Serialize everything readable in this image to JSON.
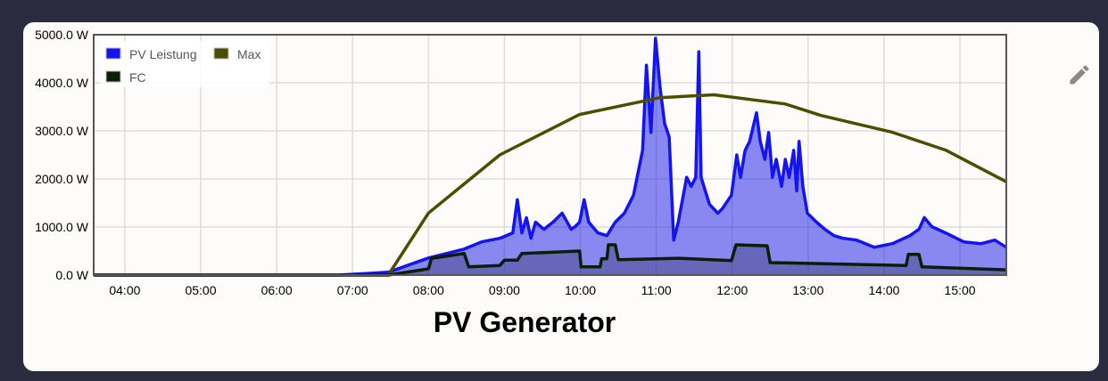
{
  "card": {
    "edit_icon": "pencil-icon"
  },
  "chart_data": {
    "type": "area",
    "title": "PV Generator",
    "xlabel": "",
    "ylabel": "",
    "xlim": [
      3.59,
      15.61
    ],
    "ylim": [
      0,
      5000
    ],
    "grid": true,
    "legend_placement": "top-left",
    "x_ticks": [
      {
        "v": 4,
        "label": "04:00"
      },
      {
        "v": 5,
        "label": "05:00"
      },
      {
        "v": 6,
        "label": "06:00"
      },
      {
        "v": 7,
        "label": "07:00"
      },
      {
        "v": 8,
        "label": "08:00"
      },
      {
        "v": 9,
        "label": "09:00"
      },
      {
        "v": 10,
        "label": "10:00"
      },
      {
        "v": 11,
        "label": "11:00"
      },
      {
        "v": 12,
        "label": "12:00"
      },
      {
        "v": 13,
        "label": "13:00"
      },
      {
        "v": 14,
        "label": "14:00"
      },
      {
        "v": 15,
        "label": "15:00"
      }
    ],
    "y_ticks": [
      {
        "v": 0,
        "label": "0.0 W"
      },
      {
        "v": 1000,
        "label": "1000.0 W"
      },
      {
        "v": 2000,
        "label": "2000.0 W"
      },
      {
        "v": 3000,
        "label": "3000.0 W"
      },
      {
        "v": 4000,
        "label": "4000.0 W"
      },
      {
        "v": 5000,
        "label": "5000.0 W"
      }
    ],
    "series": [
      {
        "name": "PV Leistung",
        "color": "#1414f0",
        "fill": "rgba(20,20,230,0.5)",
        "points": [
          [
            3.59,
            0
          ],
          [
            6.82,
            0
          ],
          [
            7.29,
            40
          ],
          [
            7.47,
            60
          ],
          [
            8.0,
            355
          ],
          [
            8.47,
            541
          ],
          [
            8.7,
            690
          ],
          [
            8.94,
            765
          ],
          [
            9.11,
            877
          ],
          [
            9.17,
            1567
          ],
          [
            9.23,
            877
          ],
          [
            9.29,
            1194
          ],
          [
            9.35,
            765
          ],
          [
            9.41,
            1101
          ],
          [
            9.52,
            952
          ],
          [
            9.64,
            1101
          ],
          [
            9.76,
            1287
          ],
          [
            9.88,
            952
          ],
          [
            9.93,
            1008
          ],
          [
            9.99,
            1101
          ],
          [
            10.05,
            1567
          ],
          [
            10.11,
            1101
          ],
          [
            10.23,
            877
          ],
          [
            10.35,
            821
          ],
          [
            10.46,
            1101
          ],
          [
            10.58,
            1287
          ],
          [
            10.7,
            1661
          ],
          [
            10.76,
            2127
          ],
          [
            10.82,
            2594
          ],
          [
            10.87,
            4366
          ],
          [
            10.93,
            2967
          ],
          [
            10.99,
            4926
          ],
          [
            11.05,
            3900
          ],
          [
            11.11,
            3153
          ],
          [
            11.17,
            2874
          ],
          [
            11.23,
            728
          ],
          [
            11.29,
            1101
          ],
          [
            11.4,
            2034
          ],
          [
            11.46,
            1847
          ],
          [
            11.52,
            2034
          ],
          [
            11.56,
            4646
          ],
          [
            11.59,
            2034
          ],
          [
            11.7,
            1474
          ],
          [
            11.81,
            1287
          ],
          [
            11.87,
            1381
          ],
          [
            11.99,
            1661
          ],
          [
            12.06,
            2500
          ],
          [
            12.11,
            2034
          ],
          [
            12.17,
            2594
          ],
          [
            12.23,
            2780
          ],
          [
            12.32,
            3377
          ],
          [
            12.37,
            2780
          ],
          [
            12.43,
            2407
          ],
          [
            12.48,
            2967
          ],
          [
            12.53,
            2034
          ],
          [
            12.58,
            2407
          ],
          [
            12.65,
            1847
          ],
          [
            12.7,
            2407
          ],
          [
            12.75,
            2034
          ],
          [
            12.81,
            2594
          ],
          [
            12.85,
            1754
          ],
          [
            12.88,
            2780
          ],
          [
            12.93,
            1847
          ],
          [
            12.99,
            1287
          ],
          [
            13.11,
            1101
          ],
          [
            13.22,
            952
          ],
          [
            13.34,
            821
          ],
          [
            13.46,
            765
          ],
          [
            13.64,
            728
          ],
          [
            13.87,
            578
          ],
          [
            14.11,
            653
          ],
          [
            14.34,
            821
          ],
          [
            14.46,
            952
          ],
          [
            14.53,
            1194
          ],
          [
            14.63,
            1008
          ],
          [
            14.81,
            877
          ],
          [
            15.05,
            690
          ],
          [
            15.28,
            653
          ],
          [
            15.46,
            728
          ],
          [
            15.61,
            578
          ]
        ]
      },
      {
        "name": "Max",
        "color": "#4d4d00",
        "points": [
          [
            3.59,
            0
          ],
          [
            7.47,
            0
          ],
          [
            8.0,
            1290
          ],
          [
            8.94,
            2500
          ],
          [
            9.99,
            3340
          ],
          [
            11.05,
            3690
          ],
          [
            11.76,
            3750
          ],
          [
            12.7,
            3560
          ],
          [
            13.17,
            3320
          ],
          [
            14.11,
            2970
          ],
          [
            14.81,
            2600
          ],
          [
            15.61,
            1940
          ]
        ]
      },
      {
        "name": "FC",
        "color": "#0b1f08",
        "fill": "rgba(40,40,90,0.35)",
        "points": [
          [
            3.59,
            0
          ],
          [
            7.47,
            0
          ],
          [
            8.0,
            130
          ],
          [
            8.04,
            350
          ],
          [
            8.23,
            390
          ],
          [
            8.47,
            450
          ],
          [
            8.53,
            170
          ],
          [
            8.94,
            200
          ],
          [
            9.0,
            310
          ],
          [
            9.17,
            310
          ],
          [
            9.23,
            450
          ],
          [
            9.99,
            500
          ],
          [
            10.01,
            170
          ],
          [
            10.26,
            170
          ],
          [
            10.28,
            340
          ],
          [
            10.35,
            340
          ],
          [
            10.37,
            630
          ],
          [
            10.46,
            630
          ],
          [
            10.5,
            320
          ],
          [
            11.29,
            350
          ],
          [
            11.99,
            300
          ],
          [
            12.05,
            630
          ],
          [
            12.46,
            610
          ],
          [
            12.5,
            260
          ],
          [
            14.29,
            200
          ],
          [
            14.32,
            430
          ],
          [
            14.46,
            430
          ],
          [
            14.5,
            170
          ],
          [
            15.61,
            110
          ]
        ]
      }
    ]
  }
}
